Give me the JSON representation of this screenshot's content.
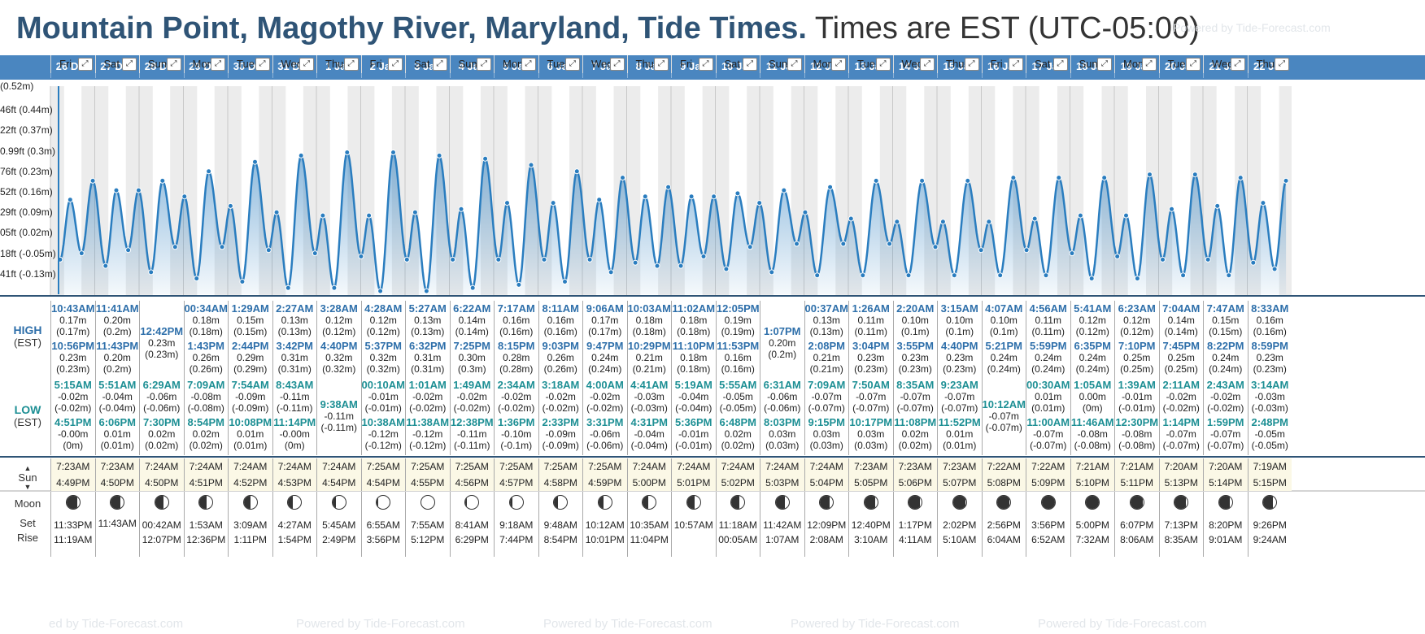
{
  "header": {
    "location_title": "Mountain Point, Magothy River, Maryland, Tide Times.",
    "timezone_note": "Times are EST (UTC-05:00)",
    "powered_by": "Powered by Tide-Forecast.com"
  },
  "footer": {
    "credits": [
      "ed by Tide-Forecast.com",
      "Powered by Tide-Forecast.com",
      "Powered by Tide-Forecast.com",
      "Powered by Tide-Forecast.com",
      "Powered by Tide-Forecast.com"
    ]
  },
  "colors": {
    "accent": "#4a86c0",
    "title": "#2f5476",
    "high": "#2e6faa",
    "low": "#1d8f94",
    "sun_band": "#fbf8e6",
    "curve": "#2a7dbf"
  },
  "labels": {
    "high": "HIGH",
    "low": "LOW",
    "est": "(EST)",
    "sun": "Sun",
    "moon": "Moon",
    "set": "Set",
    "rise": "Rise"
  },
  "y_axis": [
    "(0.52m)",
    "46ft (0.44m)",
    "22ft (0.37m)",
    "0.99ft (0.3m)",
    "76ft (0.23m)",
    "52ft (0.16m)",
    "29ft (0.09m)",
    "05ft (0.02m)",
    "18ft (-0.05m)",
    "41ft (-0.13m)"
  ],
  "days": [
    {
      "date": "26 Dec",
      "wd": "Fri",
      "highs": [
        [
          "10:43AM",
          "0.17m",
          "(0.17m)"
        ],
        [
          "10:56PM",
          "0.23m",
          "(0.23m)"
        ]
      ],
      "lows": [
        [
          "5:15AM",
          "-0.02m",
          "(-0.02m)"
        ],
        [
          "4:51PM",
          "-0.00m",
          "(0m)"
        ]
      ],
      "sun": [
        "7:23AM",
        "4:49PM"
      ],
      "moon": [
        0.2,
        "11:33PM",
        "11:19AM"
      ]
    },
    {
      "date": "27 Dec",
      "wd": "Sat",
      "highs": [
        [
          "11:41AM",
          "0.20m",
          "(0.2m)"
        ],
        [
          "11:43PM",
          "0.20m",
          "(0.2m)"
        ]
      ],
      "lows": [
        [
          "5:51AM",
          "-0.04m",
          "(-0.04m)"
        ],
        [
          "6:06PM",
          "0.01m",
          "(0.01m)"
        ]
      ],
      "sun": [
        "7:23AM",
        "4:50PM"
      ],
      "moon": [
        0.28,
        "",
        "11:43AM"
      ]
    },
    {
      "date": "28 Dec",
      "wd": "Sun",
      "highs": [
        [
          "12:42PM",
          "0.23m",
          "(0.23m)"
        ]
      ],
      "lows": [
        [
          "6:29AM",
          "-0.06m",
          "(-0.06m)"
        ],
        [
          "7:30PM",
          "0.02m",
          "(0.02m)"
        ]
      ],
      "sun": [
        "7:24AM",
        "4:50PM"
      ],
      "moon": [
        0.36,
        "00:42AM",
        "12:07PM"
      ]
    },
    {
      "date": "29 Dec",
      "wd": "Mon",
      "highs": [
        [
          "00:34AM",
          "0.18m",
          "(0.18m)"
        ],
        [
          "1:43PM",
          "0.26m",
          "(0.26m)"
        ]
      ],
      "lows": [
        [
          "7:09AM",
          "-0.08m",
          "(-0.08m)"
        ],
        [
          "8:54PM",
          "0.02m",
          "(0.02m)"
        ]
      ],
      "sun": [
        "7:24AM",
        "4:51PM"
      ],
      "moon": [
        0.44,
        "1:53AM",
        "12:36PM"
      ]
    },
    {
      "date": "30 Dec",
      "wd": "Tue",
      "highs": [
        [
          "1:29AM",
          "0.15m",
          "(0.15m)"
        ],
        [
          "2:44PM",
          "0.29m",
          "(0.29m)"
        ]
      ],
      "lows": [
        [
          "7:54AM",
          "-0.09m",
          "(-0.09m)"
        ],
        [
          "10:08PM",
          "0.01m",
          "(0.01m)"
        ]
      ],
      "sun": [
        "7:24AM",
        "4:52PM"
      ],
      "moon": [
        0.52,
        "3:09AM",
        "1:11PM"
      ]
    },
    {
      "date": "31 Dec",
      "wd": "Wed",
      "highs": [
        [
          "2:27AM",
          "0.13m",
          "(0.13m)"
        ],
        [
          "3:42PM",
          "0.31m",
          "(0.31m)"
        ]
      ],
      "lows": [
        [
          "8:43AM",
          "-0.11m",
          "(-0.11m)"
        ],
        [
          "11:14PM",
          "-0.00m",
          "(0m)"
        ]
      ],
      "sun": [
        "7:24AM",
        "4:53PM"
      ],
      "moon": [
        0.62,
        "4:27AM",
        "1:54PM"
      ]
    },
    {
      "date": "1 Jan",
      "wd": "Thu",
      "highs": [
        [
          "3:28AM",
          "0.12m",
          "(0.12m)"
        ],
        [
          "4:40PM",
          "0.32m",
          "(0.32m)"
        ]
      ],
      "lows": [
        [
          "9:38AM",
          "-0.11m",
          "(-0.11m)"
        ]
      ],
      "sun": [
        "7:24AM",
        "4:54PM"
      ],
      "moon": [
        0.72,
        "5:45AM",
        "2:49PM"
      ]
    },
    {
      "date": "2 Jan",
      "wd": "Fri",
      "highs": [
        [
          "4:28AM",
          "0.12m",
          "(0.12m)"
        ],
        [
          "5:37PM",
          "0.32m",
          "(0.32m)"
        ]
      ],
      "lows": [
        [
          "00:10AM",
          "-0.01m",
          "(-0.01m)"
        ],
        [
          "10:38AM",
          "-0.12m",
          "(-0.12m)"
        ]
      ],
      "sun": [
        "7:25AM",
        "4:54PM"
      ],
      "moon": [
        0.88,
        "6:55AM",
        "3:56PM"
      ]
    },
    {
      "date": "3 Jan",
      "wd": "Sat",
      "highs": [
        [
          "5:27AM",
          "0.13m",
          "(0.13m)"
        ],
        [
          "6:32PM",
          "0.31m",
          "(0.31m)"
        ]
      ],
      "lows": [
        [
          "1:01AM",
          "-0.02m",
          "(-0.02m)"
        ],
        [
          "11:38AM",
          "-0.12m",
          "(-0.12m)"
        ]
      ],
      "sun": [
        "7:25AM",
        "4:55PM"
      ],
      "moon": [
        1.0,
        "7:55AM",
        "5:12PM"
      ]
    },
    {
      "date": "4 Jan",
      "wd": "Sun",
      "highs": [
        [
          "6:22AM",
          "0.14m",
          "(0.14m)"
        ],
        [
          "7:25PM",
          "0.30m",
          "(0.3m)"
        ]
      ],
      "lows": [
        [
          "1:49AM",
          "-0.02m",
          "(-0.02m)"
        ],
        [
          "12:38PM",
          "-0.11m",
          "(-0.11m)"
        ]
      ],
      "sun": [
        "7:25AM",
        "4:56PM"
      ],
      "moon": [
        0.9,
        "8:41AM",
        "6:29PM"
      ]
    },
    {
      "date": "5 Jan",
      "wd": "Mon",
      "highs": [
        [
          "7:17AM",
          "0.16m",
          "(0.16m)"
        ],
        [
          "8:15PM",
          "0.28m",
          "(0.28m)"
        ]
      ],
      "lows": [
        [
          "2:34AM",
          "-0.02m",
          "(-0.02m)"
        ],
        [
          "1:36PM",
          "-0.10m",
          "(-0.1m)"
        ]
      ],
      "sun": [
        "7:25AM",
        "4:57PM"
      ],
      "moon": [
        0.8,
        "9:18AM",
        "7:44PM"
      ]
    },
    {
      "date": "6 Jan",
      "wd": "Tue",
      "highs": [
        [
          "8:11AM",
          "0.16m",
          "(0.16m)"
        ],
        [
          "9:03PM",
          "0.26m",
          "(0.26m)"
        ]
      ],
      "lows": [
        [
          "3:18AM",
          "-0.02m",
          "(-0.02m)"
        ],
        [
          "2:33PM",
          "-0.09m",
          "(-0.09m)"
        ]
      ],
      "sun": [
        "7:25AM",
        "4:58PM"
      ],
      "moon": [
        0.7,
        "9:48AM",
        "8:54PM"
      ]
    },
    {
      "date": "7 Jan",
      "wd": "Wed",
      "highs": [
        [
          "9:06AM",
          "0.17m",
          "(0.17m)"
        ],
        [
          "9:47PM",
          "0.24m",
          "(0.24m)"
        ]
      ],
      "lows": [
        [
          "4:00AM",
          "-0.02m",
          "(-0.02m)"
        ],
        [
          "3:31PM",
          "-0.06m",
          "(-0.06m)"
        ]
      ],
      "sun": [
        "7:25AM",
        "4:59PM"
      ],
      "moon": [
        0.62,
        "10:12AM",
        "10:01PM"
      ]
    },
    {
      "date": "8 Jan",
      "wd": "Thu",
      "highs": [
        [
          "10:03AM",
          "0.18m",
          "(0.18m)"
        ],
        [
          "10:29PM",
          "0.21m",
          "(0.21m)"
        ]
      ],
      "lows": [
        [
          "4:41AM",
          "-0.03m",
          "(-0.03m)"
        ],
        [
          "4:31PM",
          "-0.04m",
          "(-0.04m)"
        ]
      ],
      "sun": [
        "7:24AM",
        "5:00PM"
      ],
      "moon": [
        0.54,
        "10:35AM",
        "11:04PM"
      ]
    },
    {
      "date": "9 Jan",
      "wd": "Fri",
      "highs": [
        [
          "11:02AM",
          "0.18m",
          "(0.18m)"
        ],
        [
          "11:10PM",
          "0.18m",
          "(0.18m)"
        ]
      ],
      "lows": [
        [
          "5:19AM",
          "-0.04m",
          "(-0.04m)"
        ],
        [
          "5:36PM",
          "-0.01m",
          "(-0.01m)"
        ]
      ],
      "sun": [
        "7:24AM",
        "5:01PM"
      ],
      "moon": [
        0.46,
        "10:57AM",
        ""
      ]
    },
    {
      "date": "10 Jan",
      "wd": "Sat",
      "highs": [
        [
          "12:05PM",
          "0.19m",
          "(0.19m)"
        ],
        [
          "11:53PM",
          "0.16m",
          "(0.16m)"
        ]
      ],
      "lows": [
        [
          "5:55AM",
          "-0.05m",
          "(-0.05m)"
        ],
        [
          "6:48PM",
          "0.02m",
          "(0.02m)"
        ]
      ],
      "sun": [
        "7:24AM",
        "5:02PM"
      ],
      "moon": [
        0.4,
        "11:18AM",
        "00:05AM"
      ]
    },
    {
      "date": "11 Jan",
      "wd": "Sun",
      "highs": [
        [
          "1:07PM",
          "0.20m",
          "(0.2m)"
        ]
      ],
      "lows": [
        [
          "6:31AM",
          "-0.06m",
          "(-0.06m)"
        ],
        [
          "8:03PM",
          "0.03m",
          "(0.03m)"
        ]
      ],
      "sun": [
        "7:24AM",
        "5:03PM"
      ],
      "moon": [
        0.32,
        "11:42AM",
        "1:07AM"
      ]
    },
    {
      "date": "12 Jan",
      "wd": "Mon",
      "highs": [
        [
          "00:37AM",
          "0.13m",
          "(0.13m)"
        ],
        [
          "2:08PM",
          "0.21m",
          "(0.21m)"
        ]
      ],
      "lows": [
        [
          "7:09AM",
          "-0.07m",
          "(-0.07m)"
        ],
        [
          "9:15PM",
          "0.03m",
          "(0.03m)"
        ]
      ],
      "sun": [
        "7:24AM",
        "5:04PM"
      ],
      "moon": [
        0.24,
        "12:09PM",
        "2:08AM"
      ]
    },
    {
      "date": "13 Jan",
      "wd": "Tue",
      "highs": [
        [
          "1:26AM",
          "0.11m",
          "(0.11m)"
        ],
        [
          "3:04PM",
          "0.23m",
          "(0.23m)"
        ]
      ],
      "lows": [
        [
          "7:50AM",
          "-0.07m",
          "(-0.07m)"
        ],
        [
          "10:17PM",
          "0.03m",
          "(0.03m)"
        ]
      ],
      "sun": [
        "7:23AM",
        "5:05PM"
      ],
      "moon": [
        0.18,
        "12:40PM",
        "3:10AM"
      ]
    },
    {
      "date": "14 Jan",
      "wd": "Wed",
      "highs": [
        [
          "2:20AM",
          "0.10m",
          "(0.1m)"
        ],
        [
          "3:55PM",
          "0.23m",
          "(0.23m)"
        ]
      ],
      "lows": [
        [
          "8:35AM",
          "-0.07m",
          "(-0.07m)"
        ],
        [
          "11:08PM",
          "0.02m",
          "(0.02m)"
        ]
      ],
      "sun": [
        "7:23AM",
        "5:06PM"
      ],
      "moon": [
        0.12,
        "1:17PM",
        "4:11AM"
      ]
    },
    {
      "date": "15 Jan",
      "wd": "Thu",
      "highs": [
        [
          "3:15AM",
          "0.10m",
          "(0.1m)"
        ],
        [
          "4:40PM",
          "0.23m",
          "(0.23m)"
        ]
      ],
      "lows": [
        [
          "9:23AM",
          "-0.07m",
          "(-0.07m)"
        ],
        [
          "11:52PM",
          "0.01m",
          "(0.01m)"
        ]
      ],
      "sun": [
        "7:23AM",
        "5:07PM"
      ],
      "moon": [
        0.08,
        "2:02PM",
        "5:10AM"
      ]
    },
    {
      "date": "16 Jan",
      "wd": "Fri",
      "highs": [
        [
          "4:07AM",
          "0.10m",
          "(0.1m)"
        ],
        [
          "5:21PM",
          "0.24m",
          "(0.24m)"
        ]
      ],
      "lows": [
        [
          "10:12AM",
          "-0.07m",
          "(-0.07m)"
        ]
      ],
      "sun": [
        "7:22AM",
        "5:08PM"
      ],
      "moon": [
        0.04,
        "2:56PM",
        "6:04AM"
      ]
    },
    {
      "date": "17 Jan",
      "wd": "Sat",
      "highs": [
        [
          "4:56AM",
          "0.11m",
          "(0.11m)"
        ],
        [
          "5:59PM",
          "0.24m",
          "(0.24m)"
        ]
      ],
      "lows": [
        [
          "00:30AM",
          "0.01m",
          "(0.01m)"
        ],
        [
          "11:00AM",
          "-0.07m",
          "(-0.07m)"
        ]
      ],
      "sun": [
        "7:22AM",
        "5:09PM"
      ],
      "moon": [
        0.02,
        "3:56PM",
        "6:52AM"
      ]
    },
    {
      "date": "18 Jan",
      "wd": "Sun",
      "highs": [
        [
          "5:41AM",
          "0.12m",
          "(0.12m)"
        ],
        [
          "6:35PM",
          "0.24m",
          "(0.24m)"
        ]
      ],
      "lows": [
        [
          "1:05AM",
          "0.00m",
          "(0m)"
        ],
        [
          "11:46AM",
          "-0.08m",
          "(-0.08m)"
        ]
      ],
      "sun": [
        "7:21AM",
        "5:10PM"
      ],
      "moon": [
        0.03,
        "5:00PM",
        "7:32AM"
      ]
    },
    {
      "date": "19 Jan",
      "wd": "Mon",
      "highs": [
        [
          "6:23AM",
          "0.12m",
          "(0.12m)"
        ],
        [
          "7:10PM",
          "0.25m",
          "(0.25m)"
        ]
      ],
      "lows": [
        [
          "1:39AM",
          "-0.01m",
          "(-0.01m)"
        ],
        [
          "12:30PM",
          "-0.08m",
          "(-0.08m)"
        ]
      ],
      "sun": [
        "7:21AM",
        "5:11PM"
      ],
      "moon": [
        0.06,
        "6:07PM",
        "8:06AM"
      ]
    },
    {
      "date": "20 Jan",
      "wd": "Tue",
      "highs": [
        [
          "7:04AM",
          "0.14m",
          "(0.14m)"
        ],
        [
          "7:45PM",
          "0.25m",
          "(0.25m)"
        ]
      ],
      "lows": [
        [
          "2:11AM",
          "-0.02m",
          "(-0.02m)"
        ],
        [
          "1:14PM",
          "-0.07m",
          "(-0.07m)"
        ]
      ],
      "sun": [
        "7:20AM",
        "5:13PM"
      ],
      "moon": [
        0.1,
        "7:13PM",
        "8:35AM"
      ]
    },
    {
      "date": "21 Jan",
      "wd": "Wed",
      "highs": [
        [
          "7:47AM",
          "0.15m",
          "(0.15m)"
        ],
        [
          "8:22PM",
          "0.24m",
          "(0.24m)"
        ]
      ],
      "lows": [
        [
          "2:43AM",
          "-0.02m",
          "(-0.02m)"
        ],
        [
          "1:59PM",
          "-0.07m",
          "(-0.07m)"
        ]
      ],
      "sun": [
        "7:20AM",
        "5:14PM"
      ],
      "moon": [
        0.16,
        "8:20PM",
        "9:01AM"
      ]
    },
    {
      "date": "22 Jan",
      "wd": "Thu",
      "highs": [
        [
          "8:33AM",
          "0.16m",
          "(0.16m)"
        ],
        [
          "8:59PM",
          "0.23m",
          "(0.23m)"
        ]
      ],
      "lows": [
        [
          "3:14AM",
          "-0.03m",
          "(-0.03m)"
        ],
        [
          "2:48PM",
          "-0.05m",
          "(-0.05m)"
        ]
      ],
      "sun": [
        "7:19AM",
        "5:15PM"
      ],
      "moon": [
        0.22,
        "9:26PM",
        "9:24AM"
      ]
    }
  ]
}
